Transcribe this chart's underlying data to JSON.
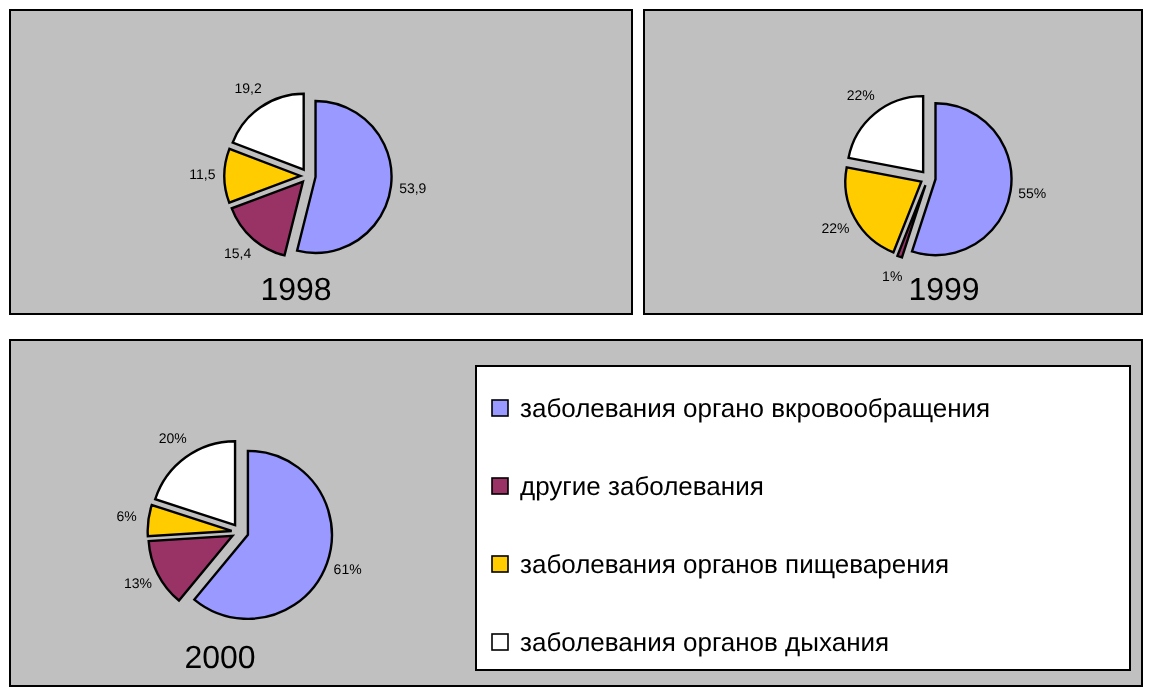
{
  "chart_data": [
    {
      "type": "pie",
      "title": "1998",
      "categories": [
        null,
        null,
        null,
        null
      ],
      "values": [
        53.9,
        15.4,
        11.5,
        19.2
      ],
      "value_labels": [
        "53,9",
        "15,4",
        "11,5",
        "19,2"
      ],
      "colors": [
        "#9999ff",
        "#993366",
        "#ffcc00",
        "#ffffff"
      ],
      "legend": false
    },
    {
      "type": "pie",
      "title": "1999",
      "categories": [
        null,
        null,
        null,
        null
      ],
      "values": [
        55,
        1,
        22,
        22
      ],
      "value_labels": [
        "55%",
        "1%",
        "22%",
        "22%"
      ],
      "colors": [
        "#9999ff",
        "#993366",
        "#ffcc00",
        "#ffffff"
      ],
      "legend": false
    },
    {
      "type": "pie",
      "title": "2000",
      "categories": [
        "заболевания органо вкровообращения",
        "другие заболевания",
        "заболевания органов пищеварения",
        "заболевания органов дыхания"
      ],
      "values": [
        61,
        13,
        6,
        20
      ],
      "value_labels": [
        "61%",
        "13%",
        "6%",
        "20%"
      ],
      "colors": [
        "#9999ff",
        "#993366",
        "#ffcc00",
        "#ffffff"
      ],
      "legend": "right"
    }
  ]
}
